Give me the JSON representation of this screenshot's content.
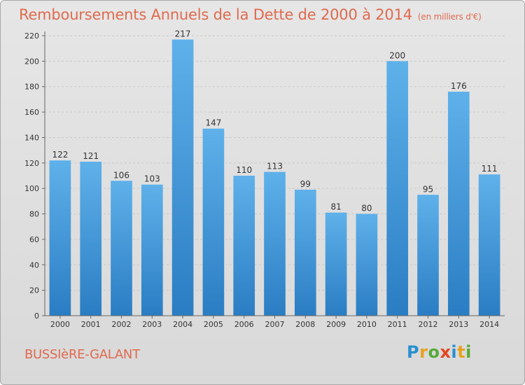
{
  "title": {
    "main": "Remboursements Annuels de la Dette de 2000 à 2014",
    "unit": "(en milliers d'€)"
  },
  "commune": "BUSSIèRE-GALANT",
  "logo": {
    "text": "Proxiti",
    "colors": [
      "#2a8fd0",
      "#e8a21d",
      "#59a93a",
      "#e3471f",
      "#2a8fd0",
      "#e8a21d",
      "#59a93a"
    ]
  },
  "colors": {
    "title": "#e06a4e",
    "bar_top": "#5fb1ea",
    "bar_bottom": "#2a7dc3"
  },
  "chart_data": {
    "type": "bar",
    "title": "Remboursements Annuels de la Dette de 2000 à 2014",
    "unit": "(en milliers d'€)",
    "categories": [
      "2000",
      "2001",
      "2002",
      "2003",
      "2004",
      "2005",
      "2006",
      "2007",
      "2008",
      "2009",
      "2010",
      "2011",
      "2012",
      "2013",
      "2014"
    ],
    "values": [
      122,
      121,
      106,
      103,
      217,
      147,
      110,
      113,
      99,
      81,
      80,
      200,
      95,
      176,
      111
    ],
    "ylim": [
      0,
      220
    ],
    "yticks": [
      0,
      20,
      40,
      60,
      80,
      100,
      120,
      140,
      160,
      180,
      200,
      220
    ],
    "grid": true,
    "data_labels": true
  }
}
